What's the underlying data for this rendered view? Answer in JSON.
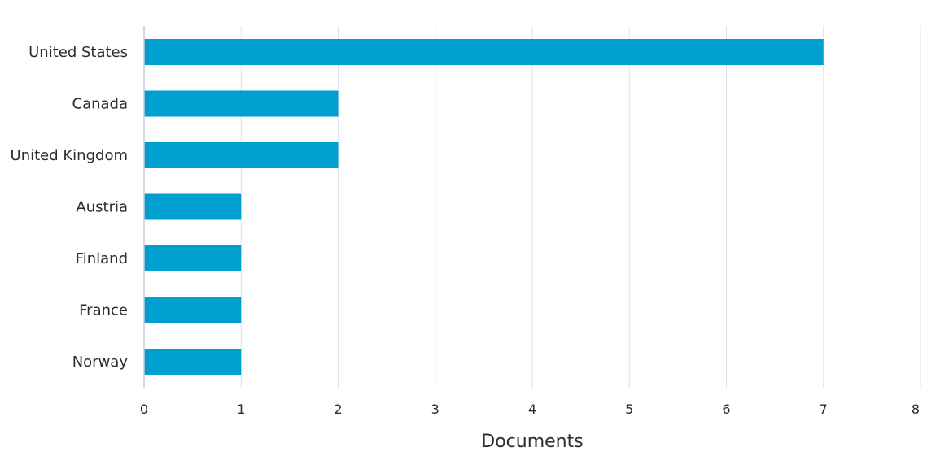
{
  "chart_data": {
    "type": "bar",
    "orientation": "horizontal",
    "categories": [
      "United States",
      "Canada",
      "United Kingdom",
      "Austria",
      "Finland",
      "France",
      "Norway"
    ],
    "values": [
      7,
      2,
      2,
      1,
      1,
      1,
      1
    ],
    "xlabel": "Documents",
    "ylabel": "",
    "xlim": [
      0,
      8
    ],
    "xticks": [
      "0",
      "1",
      "2",
      "3",
      "4",
      "5",
      "6",
      "7",
      "8"
    ],
    "grid": true,
    "legend": "none",
    "bar_color": "#009fd0"
  }
}
